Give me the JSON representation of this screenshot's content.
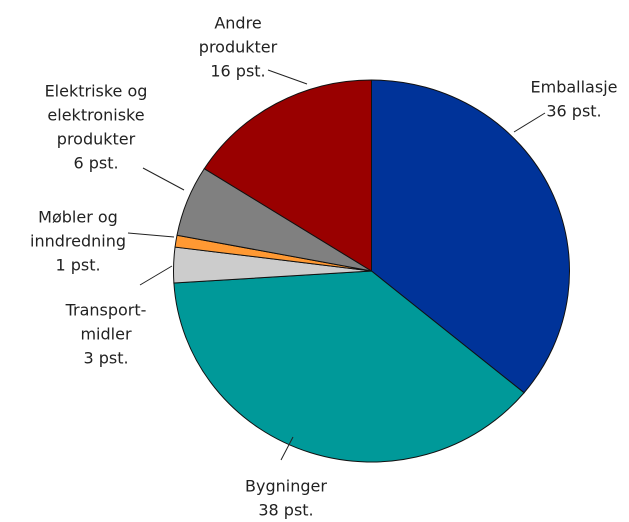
{
  "chart_data": {
    "type": "pie",
    "categories": [
      [
        "Emballasje"
      ],
      [
        "Bygninger"
      ],
      [
        "Transport-",
        "midler"
      ],
      [
        "Møbler og",
        "inndredning"
      ],
      [
        "Elektriske og",
        "elektroniske",
        "produkter"
      ],
      [
        "Andre",
        "produkter"
      ]
    ],
    "values": [
      36,
      38,
      3,
      1,
      6,
      16
    ],
    "value_labels": [
      "36 pst.",
      "38 pst.",
      "3 pst.",
      "1 pst.",
      "6 pst.",
      "16 pst."
    ],
    "colors": [
      "#003399",
      "#009999",
      "#cccccc",
      "#ff9933",
      "#808080",
      "#990000"
    ]
  }
}
